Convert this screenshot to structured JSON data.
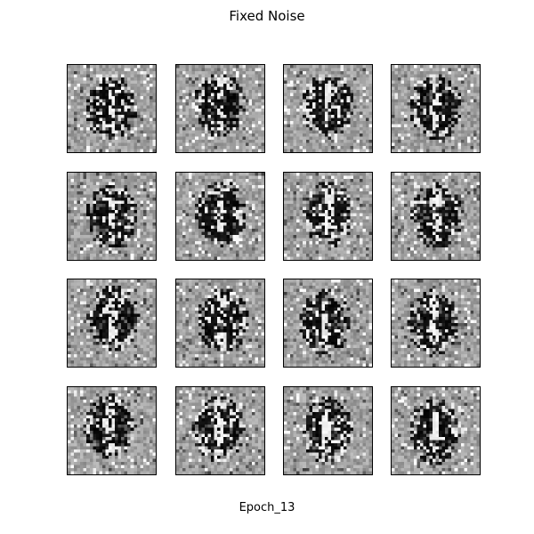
{
  "figure": {
    "title": "Fixed Noise",
    "caption": "Epoch_13"
  },
  "grid": {
    "rows": 4,
    "cols": 4,
    "sample_resolution": 28,
    "colormap": "gray",
    "samples": [
      {
        "id": 1
      },
      {
        "id": 2
      },
      {
        "id": 3
      },
      {
        "id": 4
      },
      {
        "id": 5
      },
      {
        "id": 6
      },
      {
        "id": 7
      },
      {
        "id": 8
      },
      {
        "id": 9
      },
      {
        "id": 10
      },
      {
        "id": 11
      },
      {
        "id": 12
      },
      {
        "id": 13
      },
      {
        "id": 14
      },
      {
        "id": 15
      },
      {
        "id": 16
      }
    ]
  }
}
